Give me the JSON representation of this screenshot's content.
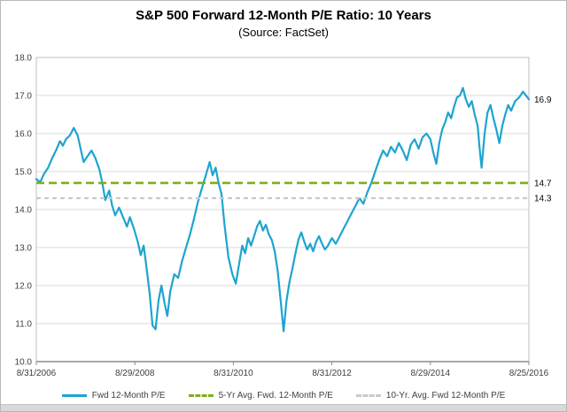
{
  "header": {
    "title": "S&P 500 Forward 12-Month P/E Ratio: 10 Years",
    "subtitle": "(Source: FactSet)"
  },
  "colors": {
    "line_blue": "#1ea4cf",
    "avg5_green": "#7fae1b",
    "avg10_gray": "#c9c9c9",
    "grid": "#d9d9d9",
    "plot_border": "#bfbfbf",
    "axis": "#8c8c8c"
  },
  "legend": {
    "items": [
      {
        "label": "Fwd 12-Month P/E",
        "color": "#1ea4cf",
        "style": "solid"
      },
      {
        "label": "5-Yr Avg. Fwd. 12-Month P/E",
        "color": "#7fae1b",
        "style": "dashed"
      },
      {
        "label": "10-Yr. Avg. Fwd 12-Month P/E",
        "color": "#c9c9c9",
        "style": "dashed"
      }
    ]
  },
  "chart_data": {
    "type": "line",
    "title": "S&P 500 Forward 12-Month P/E Ratio: 10 Years",
    "subtitle": "(Source: FactSet)",
    "xlabel": "",
    "ylabel": "",
    "ylim": [
      10.0,
      18.0
    ],
    "yticks": [
      10.0,
      11.0,
      12.0,
      13.0,
      14.0,
      15.0,
      16.0,
      17.0,
      18.0
    ],
    "grid": true,
    "legend_position": "bottom",
    "x_tick_labels": [
      "8/31/2006",
      "8/29/2008",
      "8/31/2010",
      "8/31/2012",
      "8/29/2014",
      "8/25/2016"
    ],
    "x_tick_positions": [
      0,
      0.2,
      0.4,
      0.6,
      0.8,
      1.0
    ],
    "series": [
      {
        "name": "Fwd 12-Month P/E",
        "type": "line",
        "color": "#1ea4cf",
        "points": [
          [
            0.0,
            14.8
          ],
          [
            0.008,
            14.72
          ],
          [
            0.016,
            14.95
          ],
          [
            0.024,
            15.1
          ],
          [
            0.032,
            15.35
          ],
          [
            0.04,
            15.55
          ],
          [
            0.048,
            15.8
          ],
          [
            0.054,
            15.68
          ],
          [
            0.06,
            15.85
          ],
          [
            0.068,
            15.95
          ],
          [
            0.076,
            16.15
          ],
          [
            0.084,
            15.95
          ],
          [
            0.09,
            15.6
          ],
          [
            0.096,
            15.25
          ],
          [
            0.104,
            15.4
          ],
          [
            0.112,
            15.55
          ],
          [
            0.12,
            15.35
          ],
          [
            0.128,
            15.05
          ],
          [
            0.134,
            14.7
          ],
          [
            0.14,
            14.25
          ],
          [
            0.148,
            14.5
          ],
          [
            0.154,
            14.1
          ],
          [
            0.16,
            13.85
          ],
          [
            0.168,
            14.05
          ],
          [
            0.176,
            13.8
          ],
          [
            0.184,
            13.55
          ],
          [
            0.19,
            13.8
          ],
          [
            0.198,
            13.5
          ],
          [
            0.206,
            13.15
          ],
          [
            0.212,
            12.8
          ],
          [
            0.218,
            13.05
          ],
          [
            0.224,
            12.45
          ],
          [
            0.23,
            11.8
          ],
          [
            0.236,
            10.95
          ],
          [
            0.242,
            10.85
          ],
          [
            0.248,
            11.6
          ],
          [
            0.254,
            12.0
          ],
          [
            0.26,
            11.55
          ],
          [
            0.266,
            11.2
          ],
          [
            0.272,
            11.85
          ],
          [
            0.28,
            12.3
          ],
          [
            0.288,
            12.2
          ],
          [
            0.296,
            12.65
          ],
          [
            0.304,
            13.0
          ],
          [
            0.312,
            13.35
          ],
          [
            0.32,
            13.75
          ],
          [
            0.328,
            14.2
          ],
          [
            0.336,
            14.55
          ],
          [
            0.344,
            14.9
          ],
          [
            0.352,
            15.25
          ],
          [
            0.358,
            14.9
          ],
          [
            0.364,
            15.1
          ],
          [
            0.37,
            14.7
          ],
          [
            0.376,
            14.4
          ],
          [
            0.382,
            13.6
          ],
          [
            0.39,
            12.75
          ],
          [
            0.398,
            12.3
          ],
          [
            0.405,
            12.05
          ],
          [
            0.412,
            12.6
          ],
          [
            0.418,
            13.05
          ],
          [
            0.424,
            12.85
          ],
          [
            0.43,
            13.25
          ],
          [
            0.436,
            13.05
          ],
          [
            0.442,
            13.3
          ],
          [
            0.448,
            13.55
          ],
          [
            0.454,
            13.7
          ],
          [
            0.46,
            13.45
          ],
          [
            0.466,
            13.6
          ],
          [
            0.472,
            13.35
          ],
          [
            0.478,
            13.2
          ],
          [
            0.484,
            12.9
          ],
          [
            0.49,
            12.4
          ],
          [
            0.496,
            11.6
          ],
          [
            0.502,
            10.8
          ],
          [
            0.508,
            11.6
          ],
          [
            0.514,
            12.1
          ],
          [
            0.52,
            12.45
          ],
          [
            0.526,
            12.85
          ],
          [
            0.532,
            13.2
          ],
          [
            0.538,
            13.4
          ],
          [
            0.544,
            13.15
          ],
          [
            0.55,
            12.95
          ],
          [
            0.556,
            13.1
          ],
          [
            0.562,
            12.9
          ],
          [
            0.568,
            13.15
          ],
          [
            0.574,
            13.3
          ],
          [
            0.58,
            13.1
          ],
          [
            0.586,
            12.95
          ],
          [
            0.592,
            13.05
          ],
          [
            0.6,
            13.25
          ],
          [
            0.608,
            13.1
          ],
          [
            0.616,
            13.3
          ],
          [
            0.624,
            13.5
          ],
          [
            0.632,
            13.7
          ],
          [
            0.64,
            13.9
          ],
          [
            0.648,
            14.1
          ],
          [
            0.656,
            14.3
          ],
          [
            0.664,
            14.15
          ],
          [
            0.672,
            14.45
          ],
          [
            0.68,
            14.7
          ],
          [
            0.688,
            15.0
          ],
          [
            0.696,
            15.3
          ],
          [
            0.704,
            15.55
          ],
          [
            0.712,
            15.4
          ],
          [
            0.72,
            15.65
          ],
          [
            0.728,
            15.5
          ],
          [
            0.736,
            15.75
          ],
          [
            0.744,
            15.55
          ],
          [
            0.752,
            15.3
          ],
          [
            0.76,
            15.7
          ],
          [
            0.768,
            15.85
          ],
          [
            0.776,
            15.6
          ],
          [
            0.784,
            15.9
          ],
          [
            0.792,
            16.0
          ],
          [
            0.8,
            15.85
          ],
          [
            0.806,
            15.5
          ],
          [
            0.812,
            15.2
          ],
          [
            0.818,
            15.75
          ],
          [
            0.824,
            16.1
          ],
          [
            0.83,
            16.3
          ],
          [
            0.836,
            16.55
          ],
          [
            0.842,
            16.4
          ],
          [
            0.848,
            16.7
          ],
          [
            0.854,
            16.95
          ],
          [
            0.86,
            17.0
          ],
          [
            0.866,
            17.2
          ],
          [
            0.872,
            16.9
          ],
          [
            0.878,
            16.7
          ],
          [
            0.884,
            16.85
          ],
          [
            0.89,
            16.5
          ],
          [
            0.896,
            16.2
          ],
          [
            0.9,
            15.6
          ],
          [
            0.904,
            15.1
          ],
          [
            0.91,
            16.0
          ],
          [
            0.916,
            16.55
          ],
          [
            0.922,
            16.75
          ],
          [
            0.928,
            16.4
          ],
          [
            0.934,
            16.1
          ],
          [
            0.94,
            15.75
          ],
          [
            0.946,
            16.2
          ],
          [
            0.952,
            16.5
          ],
          [
            0.958,
            16.75
          ],
          [
            0.964,
            16.6
          ],
          [
            0.972,
            16.85
          ],
          [
            0.98,
            16.95
          ],
          [
            0.988,
            17.1
          ],
          [
            1.0,
            16.9
          ]
        ]
      },
      {
        "name": "5-Yr Avg. Fwd. 12-Month P/E",
        "type": "hline-dashed",
        "color": "#7fae1b",
        "value": 14.7,
        "dash": "9 5",
        "width": 2.6
      },
      {
        "name": "10-Yr. Avg. Fwd 12-Month P/E",
        "type": "hline-dashed",
        "color": "#c9c9c9",
        "value": 14.3,
        "dash": "5 4",
        "width": 2.2
      }
    ],
    "annotations": [
      {
        "label": "16.9",
        "value": 16.9
      },
      {
        "label": "14.7",
        "value": 14.7
      },
      {
        "label": "14.3",
        "value": 14.3
      }
    ]
  }
}
